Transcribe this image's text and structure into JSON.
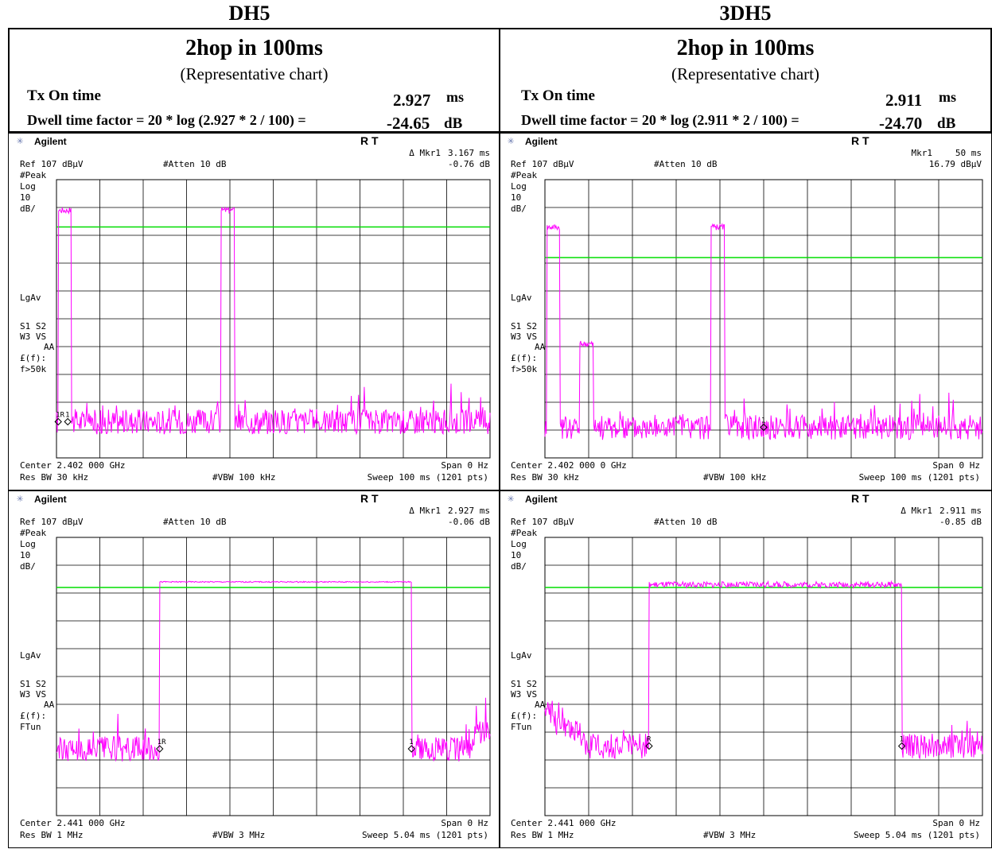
{
  "columns": [
    {
      "title": "DH5"
    },
    {
      "title": "3DH5"
    }
  ],
  "headers": [
    {
      "heading": "2hop in 100ms",
      "subheading": "(Representative chart)",
      "tx_label": "Tx On time",
      "tx_value": "2.927",
      "tx_unit": "ms",
      "dwell_label": "Dwell time factor = 20 * log (2.927 * 2 / 100) =",
      "dwell_value": "-24.65",
      "dwell_unit": "dB"
    },
    {
      "heading": "2hop in 100ms",
      "subheading": "(Representative chart)",
      "tx_label": "Tx On time",
      "tx_value": "2.911",
      "tx_unit": "ms",
      "dwell_label": "Dwell time factor = 20 * log (2.911 * 2 / 100) =",
      "dwell_value": "-24.70",
      "dwell_unit": "dB"
    }
  ],
  "colors": {
    "trace": "#ff00ff",
    "threshold": "#00dd00",
    "grid": "#000000"
  },
  "chart_data": [
    {
      "type": "line",
      "brand": "Agilent",
      "mode": "R  T",
      "marker_label": "Δ Mkr1",
      "marker_x": "3.167 ms",
      "marker_y": "-0.76 dB",
      "ref": "Ref 107 dBμV",
      "atten": "#Atten 10 dB",
      "left_labels": [
        "#Peak",
        "Log",
        "10",
        "dB/",
        "LgAv",
        "S1  S2",
        "W3  VS",
        "AA",
        "£(f):",
        "f>50k"
      ],
      "center": "Center 2.402 000 GHz",
      "span": "Span 0 Hz",
      "res_bw": "Res BW 30 kHz",
      "vbw": "#VBW 100 kHz",
      "sweep": "Sweep 100 ms (1201 pts)",
      "marker_tags": [
        "1R",
        "1"
      ],
      "xlim": [
        0,
        100
      ],
      "ylim": [
        7,
        107
      ],
      "x_unit": "ms",
      "threshold": 90,
      "bursts": [
        {
          "start": 0.4,
          "end": 3.4,
          "level": 96
        },
        {
          "start": 38.0,
          "end": 41.0,
          "level": 96
        }
      ],
      "noise_level": 20
    },
    {
      "type": "line",
      "brand": "Agilent",
      "mode": "R  T",
      "marker_label": "Mkr1",
      "marker_x": "50 ms",
      "marker_y": "16.79 dBμV",
      "ref": "Ref 107 dBμV",
      "atten": "#Atten 10 dB",
      "left_labels": [
        "#Peak",
        "Log",
        "10",
        "dB/",
        "LgAv",
        "S1  S2",
        "W3  VS",
        "AA",
        "£(f):",
        "f>50k"
      ],
      "center": "Center 2.402 000 0 GHz",
      "span": "Span 0 Hz",
      "res_bw": "Res BW 30 kHz",
      "vbw": "#VBW 100 kHz",
      "sweep": "Sweep 100 ms (1201 pts)",
      "marker_tags": [
        "1"
      ],
      "xlim": [
        0,
        100
      ],
      "ylim": [
        7,
        107
      ],
      "x_unit": "ms",
      "threshold": 79,
      "bursts": [
        {
          "start": 0.4,
          "end": 3.4,
          "level": 90
        },
        {
          "start": 8.0,
          "end": 11.0,
          "level": 48
        },
        {
          "start": 38.0,
          "end": 41.0,
          "level": 90
        }
      ],
      "noise_level": 18
    },
    {
      "type": "line",
      "brand": "Agilent",
      "mode": "R  T",
      "marker_label": "Δ Mkr1",
      "marker_x": "2.927 ms",
      "marker_y": "-0.06 dB",
      "ref": "Ref 107 dBμV",
      "atten": "#Atten 10 dB",
      "left_labels": [
        "#Peak",
        "Log",
        "10",
        "dB/",
        "LgAv",
        "S1  S2",
        "W3  VS",
        "AA",
        "£(f):",
        "FTun"
      ],
      "center": "Center 2.441 000 GHz",
      "span": "Span 0 Hz",
      "res_bw": "Res BW 1 MHz",
      "vbw": "#VBW 3 MHz",
      "sweep": "Sweep 5.04 ms (1201 pts)",
      "marker_tags": [
        "1R",
        "1"
      ],
      "xlim": [
        0,
        5.04
      ],
      "ylim": [
        7,
        107
      ],
      "x_unit": "ms",
      "threshold": 89,
      "bursts": [
        {
          "start": 1.2,
          "end": 4.127,
          "level": 91
        }
      ],
      "noise_level": 31
    },
    {
      "type": "line",
      "brand": "Agilent",
      "mode": "R  T",
      "marker_label": "Δ Mkr1",
      "marker_x": "2.911 ms",
      "marker_y": "-0.85 dB",
      "ref": "Ref 107 dBμV",
      "atten": "#Atten 10 dB",
      "left_labels": [
        "#Peak",
        "Log",
        "10",
        "dB/",
        "LgAv",
        "S1  S2",
        "W3  VS",
        "AA",
        "£(f):",
        "FTun"
      ],
      "center": "Center 2.441 000 GHz",
      "span": "Span 0 Hz",
      "res_bw": "Res BW 1 MHz",
      "vbw": "#VBW 3 MHz",
      "sweep": "Sweep 5.04 ms (1201 pts)",
      "marker_tags": [
        "R",
        "1"
      ],
      "xlim": [
        0,
        5.04
      ],
      "ylim": [
        7,
        107
      ],
      "x_unit": "ms",
      "threshold": 89,
      "bursts": [
        {
          "start": 1.2,
          "end": 4.111,
          "level": 90
        }
      ],
      "noise_level": 32
    }
  ]
}
